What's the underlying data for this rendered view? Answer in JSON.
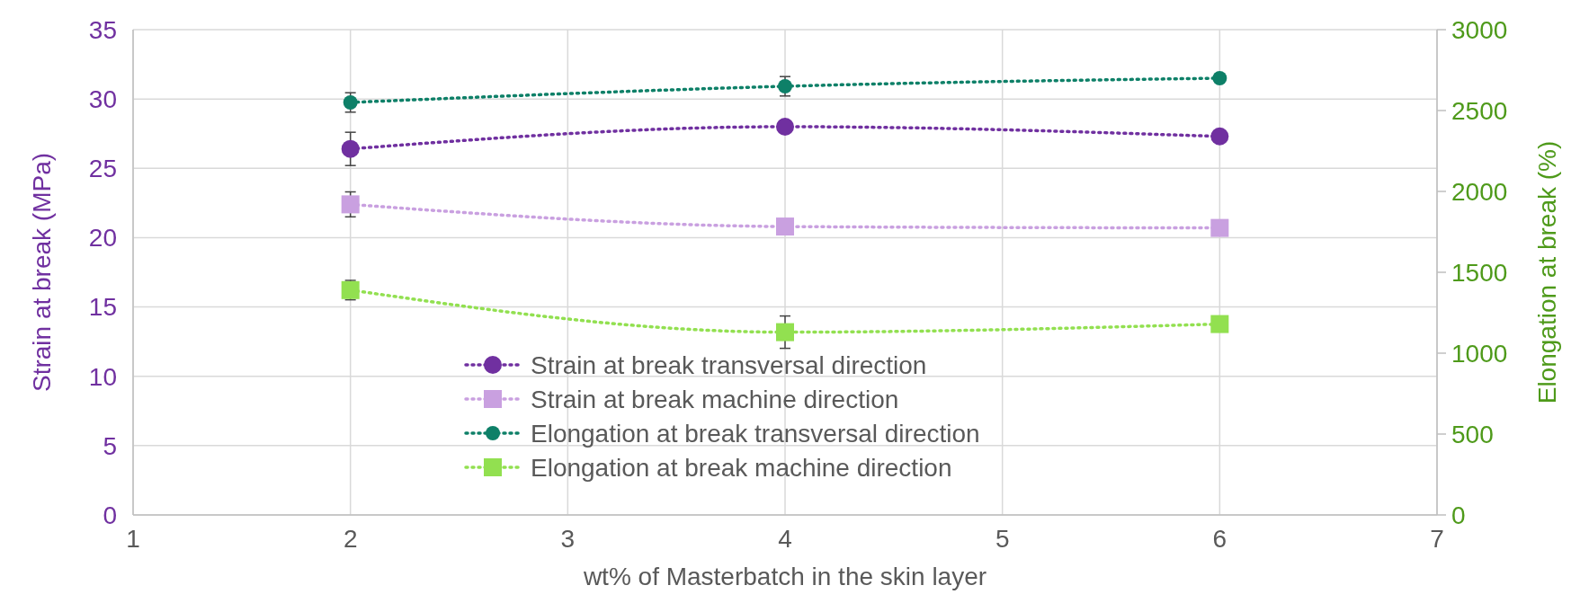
{
  "chart_data": {
    "type": "line",
    "xlabel": "wt% of Masterbatch in the skin layer",
    "ylabel": "Strain at break (MPa)",
    "y2label": "Elongation at break (%)",
    "x": [
      2,
      4,
      6
    ],
    "xlim": [
      1,
      7
    ],
    "xticks": [
      1,
      2,
      3,
      4,
      5,
      6,
      7
    ],
    "ylim": [
      0,
      35
    ],
    "yticks": [
      0,
      5,
      10,
      15,
      20,
      25,
      30,
      35
    ],
    "y2lim": [
      0,
      3000
    ],
    "y2ticks": [
      0,
      500,
      1000,
      1500,
      2000,
      2500,
      3000
    ],
    "grid": true,
    "legend": "bottom",
    "line_style": "dotted",
    "series": [
      {
        "name": "Strain at break transversal direction",
        "color": "#7030a0",
        "marker": "circle",
        "values": [
          26.4,
          28.0,
          27.3
        ],
        "errors": [
          1.2,
          null,
          null
        ]
      },
      {
        "name": "Strain at break machine direction",
        "color": "#c9a0e0",
        "marker": "square",
        "values": [
          22.4,
          20.8,
          20.7
        ],
        "errors": [
          0.9,
          null,
          null
        ]
      },
      {
        "name": "Elongation at break transversal direction",
        "color": "#0e8068",
        "marker": "circle",
        "axis": "y2",
        "values": [
          2550,
          2650,
          2700
        ],
        "errors": [
          60,
          60,
          null
        ]
      },
      {
        "name": "Elongation at break machine direction",
        "color": "#92e050",
        "marker": "square",
        "axis": "y2",
        "values": [
          1390,
          1130,
          1180
        ],
        "errors": [
          60,
          100,
          null
        ]
      }
    ]
  }
}
